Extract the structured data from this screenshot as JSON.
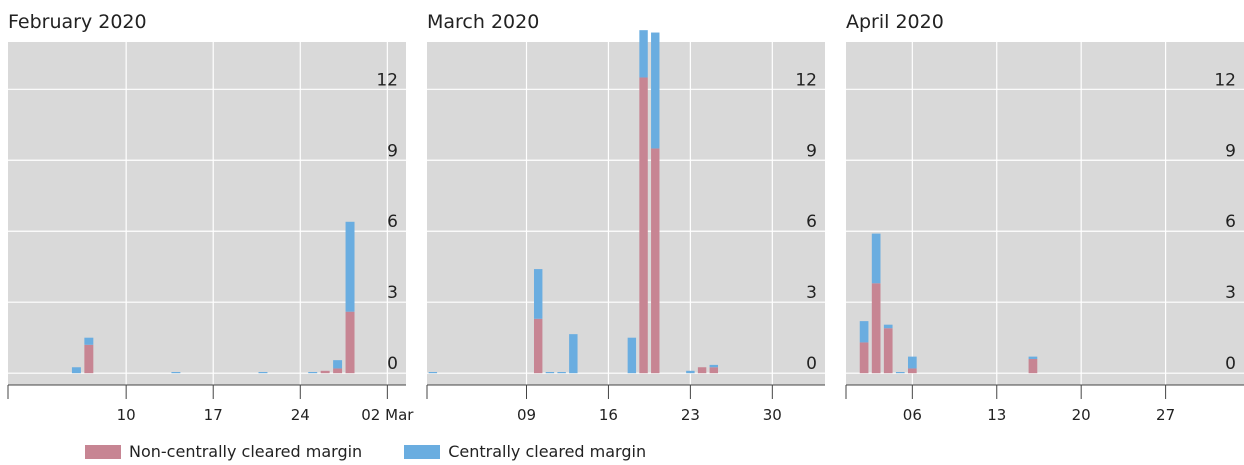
{
  "legend": {
    "noncentral_label": "Non-centrally cleared margin",
    "central_label": "Centrally cleared margin"
  },
  "colors": {
    "noncentral": "#c78593",
    "central": "#6aade0",
    "plot_bg": "#d9d9d9",
    "grid": "#ffffff"
  },
  "chart_data": [
    {
      "type": "bar",
      "stacked": true,
      "title": "February 2020",
      "ylim": [
        -0.5,
        14
      ],
      "yticks": [
        0,
        3,
        6,
        9,
        12
      ],
      "ytick_labels": [
        "0",
        "3",
        "6",
        "9",
        "12"
      ],
      "xlim": [
        0.5,
        32.5
      ],
      "xticks": [
        10,
        17,
        24,
        31
      ],
      "xtick_labels": [
        "10",
        "17",
        "24",
        "02 Mar"
      ],
      "x": [
        6,
        7,
        14,
        21,
        25,
        26,
        27,
        28,
        29
      ],
      "series": [
        {
          "name": "Non-centrally cleared margin",
          "values": [
            0,
            1.2,
            0,
            0,
            0,
            0.1,
            0.2,
            2.6,
            0
          ]
        },
        {
          "name": "Centrally cleared margin",
          "values": [
            0.25,
            0.3,
            0.05,
            0.05,
            0.05,
            0,
            0.35,
            3.8,
            0
          ]
        }
      ]
    },
    {
      "type": "bar",
      "stacked": true,
      "title": "March 2020",
      "ylim": [
        -0.5,
        14
      ],
      "yticks": [
        0,
        3,
        6,
        9,
        12
      ],
      "ytick_labels": [
        "0",
        "3",
        "6",
        "9",
        "12"
      ],
      "xlim": [
        0.5,
        34.5
      ],
      "xticks": [
        9,
        16,
        23,
        30
      ],
      "xtick_labels": [
        "09",
        "16",
        "23",
        "30"
      ],
      "x": [
        1,
        9,
        10,
        11,
        12,
        13,
        15,
        16,
        17,
        18,
        19,
        20,
        21,
        22,
        23,
        24,
        25,
        26,
        27
      ],
      "series": [
        {
          "name": "Non-centrally cleared margin",
          "values": [
            0,
            0,
            2.3,
            0,
            0,
            0,
            0,
            0,
            0,
            0,
            12.5,
            9.5,
            0,
            0,
            0,
            0.25,
            0.25,
            0,
            0
          ]
        },
        {
          "name": "Centrally cleared margin",
          "values": [
            0.05,
            0,
            2.1,
            0.05,
            0.05,
            1.65,
            0,
            0,
            0,
            1.5,
            2.0,
            4.9,
            0,
            0,
            0.1,
            0,
            0.1,
            0,
            0
          ]
        }
      ]
    },
    {
      "type": "bar",
      "stacked": true,
      "title": "April 2020",
      "ylim": [
        -0.5,
        14
      ],
      "yticks": [
        0,
        3,
        6,
        9,
        12
      ],
      "ytick_labels": [
        "0",
        "3",
        "6",
        "9",
        "12"
      ],
      "xlim": [
        0.5,
        33.5
      ],
      "xticks": [
        6,
        13,
        20,
        27
      ],
      "xtick_labels": [
        "06",
        "13",
        "20",
        "27"
      ],
      "x": [
        2,
        3,
        4,
        5,
        6,
        7,
        16,
        17
      ],
      "series": [
        {
          "name": "Non-centrally cleared margin",
          "values": [
            1.3,
            3.8,
            1.9,
            0,
            0.2,
            0,
            0.6,
            0
          ]
        },
        {
          "name": "Centrally cleared margin",
          "values": [
            0.9,
            2.1,
            0.15,
            0.05,
            0.5,
            0,
            0.1,
            0
          ]
        }
      ]
    }
  ]
}
